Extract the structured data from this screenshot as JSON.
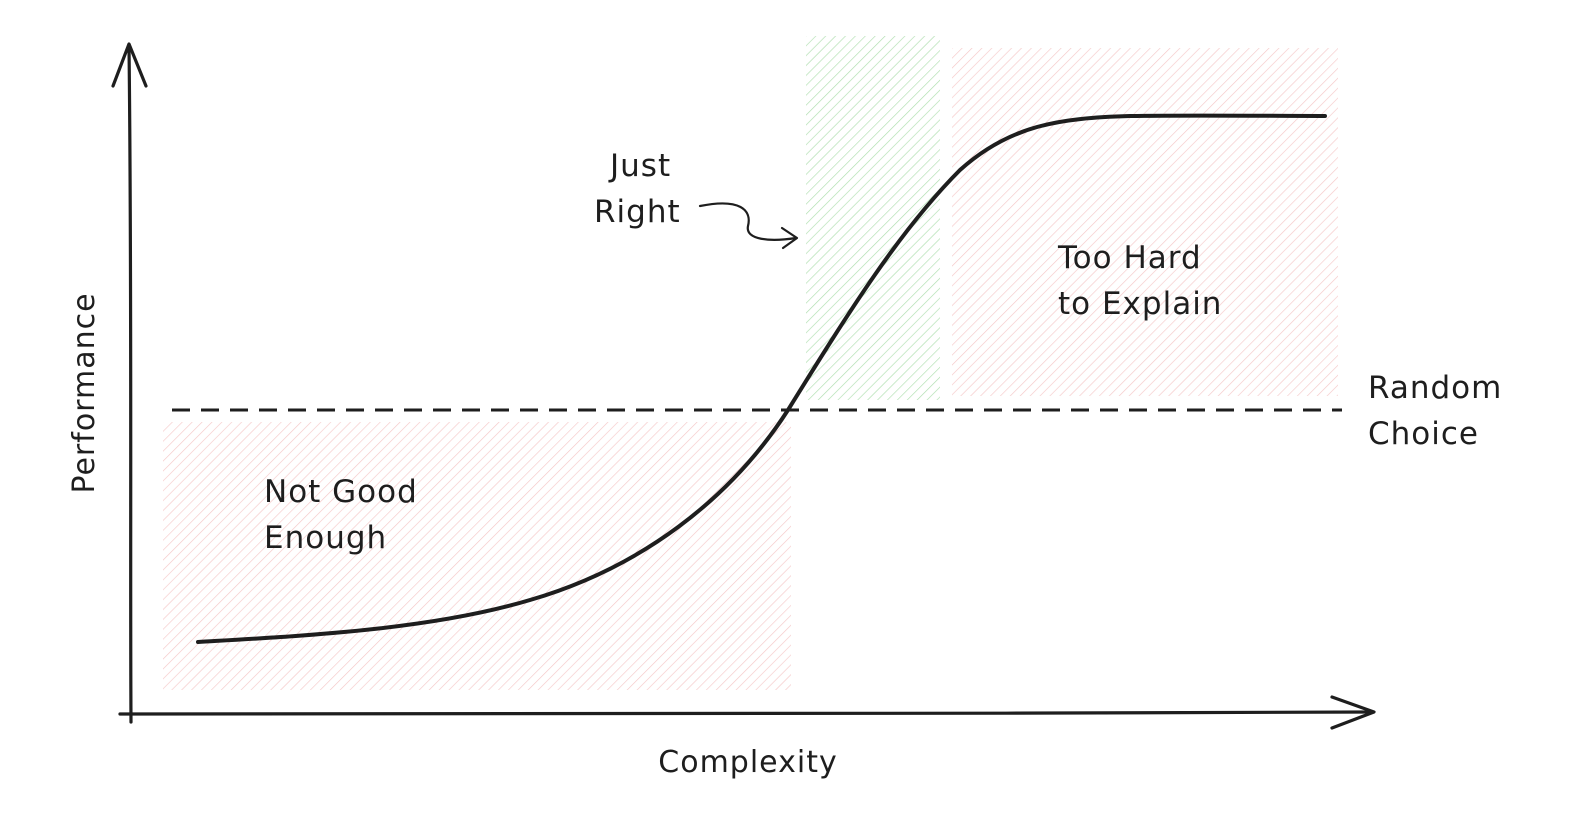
{
  "axes": {
    "x_label": "Complexity",
    "y_label": "Performance"
  },
  "regions": {
    "not_good": {
      "line1": "Not Good",
      "line2": "Enough",
      "color": "#f2b6b6"
    },
    "just_right": {
      "line1": "Just",
      "line2": "Right",
      "color": "#a8dca8"
    },
    "too_hard": {
      "line1": "Too Hard",
      "line2": "to Explain",
      "color": "#f2b6b6"
    }
  },
  "baseline": {
    "line1": "Random",
    "line2": "Choice"
  },
  "colors": {
    "ink": "#1e1e1e",
    "background": "#ffffff"
  }
}
